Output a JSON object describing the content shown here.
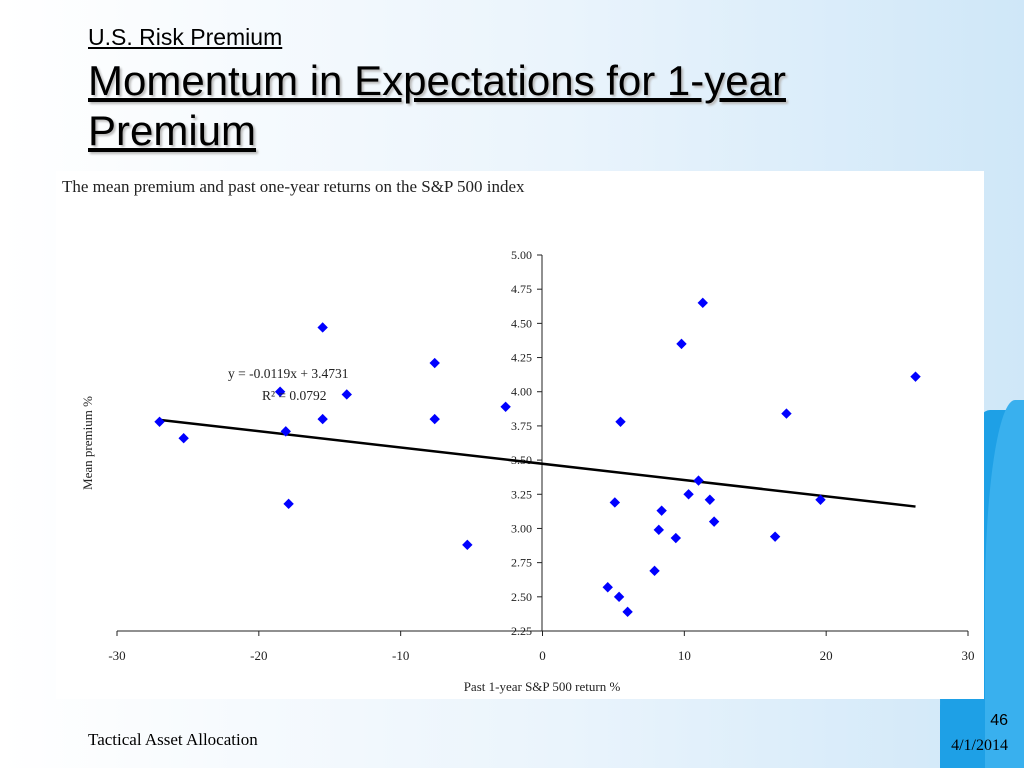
{
  "slide": {
    "eyebrow": "U.S. Risk Premium",
    "title": "Momentum in Expectations for 1-year Premium",
    "footer_left": "Tactical Asset Allocation",
    "page_number": "46",
    "date": "4/1/2014"
  },
  "chart_data": {
    "type": "scatter",
    "title": "The mean premium and past one-year returns on the S&P 500 index",
    "xlabel": "Past 1-year S&P 500 return %",
    "ylabel": "Mean premium %",
    "xlim": [
      -30,
      30
    ],
    "ylim": [
      2.25,
      5.0
    ],
    "x_ticks": [
      "-30",
      "-20",
      "-10",
      "0",
      "10",
      "20",
      "30"
    ],
    "y_ticks": [
      "2.25",
      "2.50",
      "2.75",
      "3.00",
      "3.25",
      "3.50",
      "3.75",
      "4.00",
      "4.25",
      "4.50",
      "4.75",
      "5.00"
    ],
    "grid": false,
    "marker_color": "#0000ff",
    "trendline": {
      "slope": -0.0119,
      "intercept": 3.4731,
      "x_range": [
        -27,
        26.3
      ],
      "equation_label": "y = -0.0119x + 3.4731",
      "r2_label": "R² = 0.0792"
    },
    "points": [
      {
        "x": -27.0,
        "y": 3.78
      },
      {
        "x": -25.3,
        "y": 3.66
      },
      {
        "x": -18.5,
        "y": 4.0
      },
      {
        "x": -18.1,
        "y": 3.71
      },
      {
        "x": -17.9,
        "y": 3.18
      },
      {
        "x": -15.5,
        "y": 4.47
      },
      {
        "x": -15.5,
        "y": 3.8
      },
      {
        "x": -13.8,
        "y": 3.98
      },
      {
        "x": -7.6,
        "y": 4.21
      },
      {
        "x": -7.6,
        "y": 3.8
      },
      {
        "x": -5.3,
        "y": 2.88
      },
      {
        "x": -2.6,
        "y": 3.89
      },
      {
        "x": 4.6,
        "y": 2.57
      },
      {
        "x": 5.1,
        "y": 3.19
      },
      {
        "x": 5.4,
        "y": 2.5
      },
      {
        "x": 5.5,
        "y": 3.78
      },
      {
        "x": 6.0,
        "y": 2.39
      },
      {
        "x": 7.9,
        "y": 2.69
      },
      {
        "x": 8.2,
        "y": 2.99
      },
      {
        "x": 8.4,
        "y": 3.13
      },
      {
        "x": 9.4,
        "y": 2.93
      },
      {
        "x": 9.8,
        "y": 4.35
      },
      {
        "x": 10.3,
        "y": 3.25
      },
      {
        "x": 11.0,
        "y": 3.35
      },
      {
        "x": 11.3,
        "y": 4.65
      },
      {
        "x": 11.8,
        "y": 3.21
      },
      {
        "x": 12.1,
        "y": 3.05
      },
      {
        "x": 16.4,
        "y": 2.94
      },
      {
        "x": 17.2,
        "y": 3.84
      },
      {
        "x": 19.6,
        "y": 3.21
      },
      {
        "x": 26.3,
        "y": 4.11
      }
    ]
  }
}
